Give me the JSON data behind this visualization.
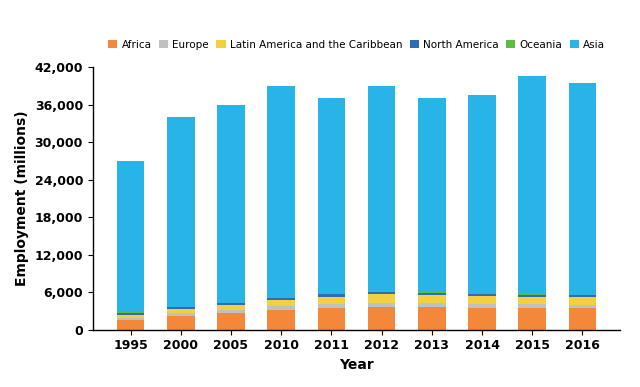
{
  "years": [
    "1995",
    "2000",
    "2005",
    "2010",
    "2011",
    "2012",
    "2013",
    "2014",
    "2015",
    "2016"
  ],
  "series": {
    "Africa": [
      1600,
      2200,
      2700,
      3100,
      3400,
      3600,
      3600,
      3500,
      3500,
      3400
    ],
    "Europe": [
      350,
      450,
      500,
      650,
      700,
      700,
      650,
      650,
      600,
      600
    ],
    "Latin America and the Caribbean": [
      450,
      650,
      750,
      1050,
      1200,
      1400,
      1300,
      1250,
      1200,
      1200
    ],
    "North America": [
      280,
      300,
      300,
      350,
      350,
      350,
      300,
      300,
      280,
      280
    ],
    "Oceania": [
      80,
      80,
      80,
      100,
      100,
      120,
      120,
      120,
      130,
      130
    ],
    "Asia": [
      24240,
      30320,
      31670,
      33750,
      31250,
      32830,
      31030,
      31680,
      34790,
      33890
    ]
  },
  "colors": {
    "Africa": "#F4883A",
    "Europe": "#C0C0C0",
    "Latin America and the Caribbean": "#F4D03F",
    "North America": "#2E6DB4",
    "Oceania": "#5DBB3F",
    "Asia": "#29B4E8"
  },
  "ylabel": "Employment (millions)",
  "xlabel": "Year",
  "ylim": [
    0,
    42000
  ],
  "yticks": [
    0,
    6000,
    12000,
    18000,
    24000,
    30000,
    36000,
    42000
  ],
  "legend_order": [
    "Africa",
    "Europe",
    "Latin America and the Caribbean",
    "North America",
    "Oceania",
    "Asia"
  ]
}
